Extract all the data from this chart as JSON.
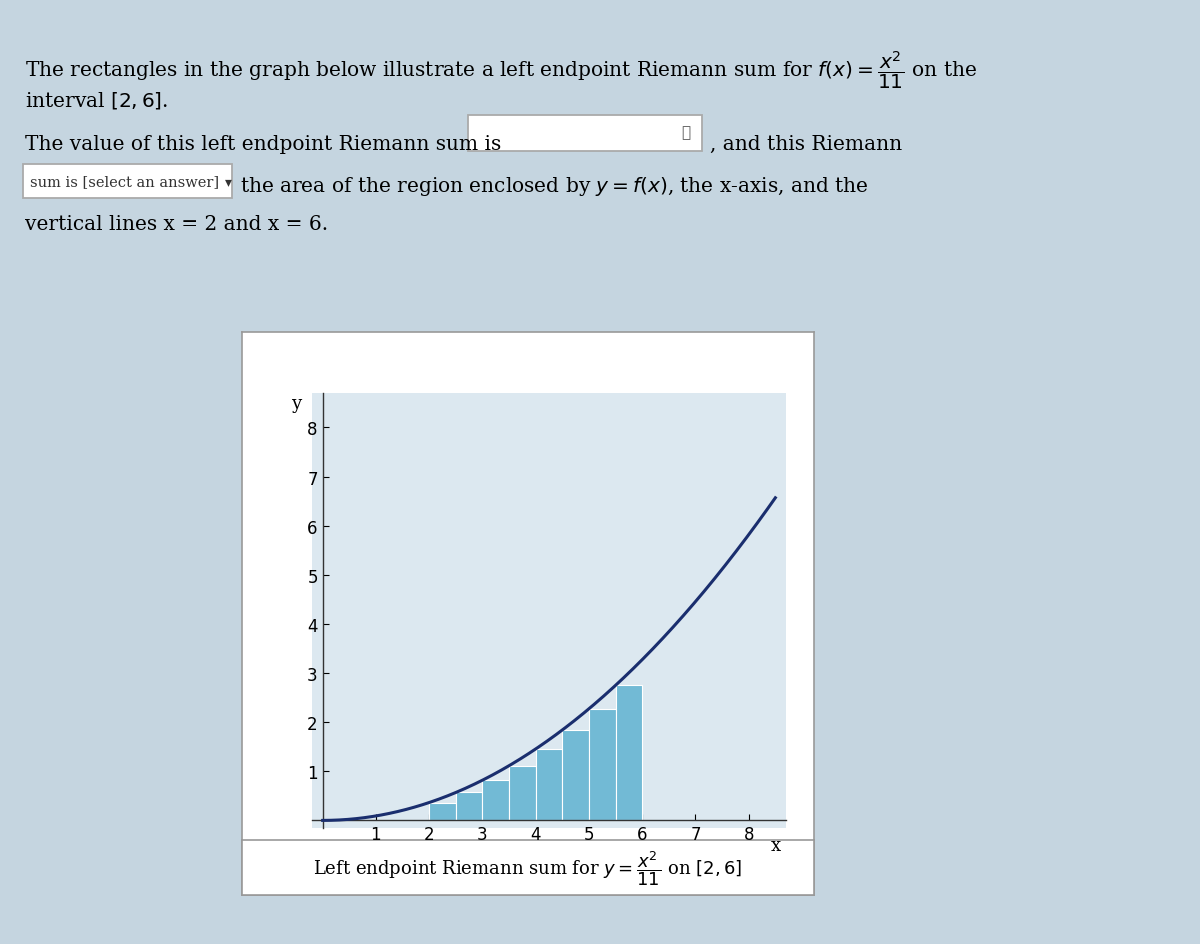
{
  "func_label": "f(x) = x^2 / 11",
  "interval_a": 2,
  "interval_b": 6,
  "n_rectangles": 8,
  "x_ticks": [
    1,
    2,
    3,
    4,
    5,
    6,
    7,
    8
  ],
  "y_ticks": [
    1,
    2,
    3,
    4,
    5,
    6,
    7,
    8
  ],
  "xlabel": "x",
  "ylabel": "y",
  "rect_color": "#72BAD5",
  "rect_edge_color": "#FFFFFF",
  "curve_color": "#1a2e6e",
  "curve_linewidth": 2.2,
  "background_color": "#c5d5e0",
  "plot_bg_color": "#dce8f0",
  "border_color": "#aaaaaa",
  "caption": "Left endpoint Riemann sum for $y = \\dfrac{x^2}{11}$ on $[2,6]$",
  "figsize": [
    12.0,
    9.45
  ],
  "dpi": 100
}
